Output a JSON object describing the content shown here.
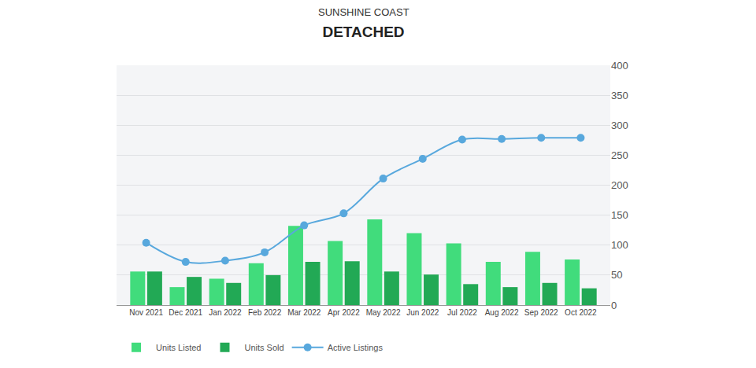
{
  "chart_data": {
    "type": "bar",
    "title": "DETACHED",
    "subtitle": "SUNSHINE COAST",
    "categories": [
      "Nov 2021",
      "Dec 2021",
      "Jan 2022",
      "Feb 2022",
      "Mar 2022",
      "Apr 2022",
      "May 2022",
      "Jun 2022",
      "Jul 2022",
      "Aug 2022",
      "Sep 2022",
      "Oct 2022"
    ],
    "series": [
      {
        "name": "Units Listed",
        "type": "bar",
        "color": "#41dc7c",
        "values": [
          56,
          30,
          44,
          70,
          132,
          107,
          143,
          120,
          103,
          72,
          89,
          76
        ]
      },
      {
        "name": "Units Sold",
        "type": "bar",
        "color": "#22a955",
        "values": [
          56,
          47,
          37,
          50,
          72,
          73,
          56,
          51,
          35,
          30,
          37,
          28
        ]
      },
      {
        "name": "Active Listings",
        "type": "line",
        "color": "#58a8dd",
        "marker": "circle",
        "line_style": "solid",
        "values": [
          104,
          72,
          74,
          88,
          133,
          153,
          211,
          244,
          276,
          277,
          279,
          279
        ]
      }
    ],
    "ylim": [
      0,
      400
    ],
    "yticks": [
      0,
      50,
      100,
      150,
      200,
      250,
      300,
      350,
      400
    ],
    "grid": true,
    "legend": "bottom"
  }
}
